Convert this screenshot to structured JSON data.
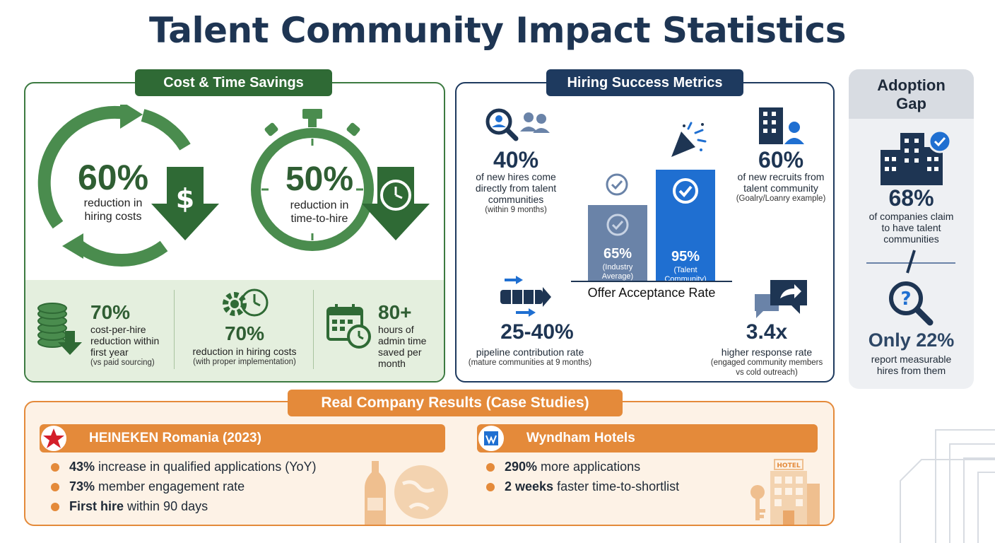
{
  "title": "Talent Community Impact Statistics",
  "colors": {
    "green": "#2f6a35",
    "navy": "#1e3a5f",
    "orange": "#e48a3a",
    "blue": "#1f6fd1",
    "gray_bar": "#6a83a8"
  },
  "cost_time": {
    "tab": "Cost & Time Savings",
    "hero": [
      {
        "value": "60%",
        "line1": "reduction in",
        "line2": "hiring costs",
        "icon": "dollar-down-arrow-icon"
      },
      {
        "value": "50%",
        "line1": "reduction in",
        "line2": "time-to-hire",
        "icon": "clock-down-arrow-icon"
      }
    ],
    "stats": [
      {
        "value": "70%",
        "line1": "cost-per-hire",
        "line2": "reduction within",
        "line3": "first year",
        "note": "(vs paid sourcing)",
        "icon": "coins-down-icon"
      },
      {
        "value": "70%",
        "line1": "reduction in hiring costs",
        "note": "(with proper implementation)",
        "icon": "gear-clock-icon"
      },
      {
        "value": "80+",
        "line1": "hours of",
        "line2": "admin time",
        "line3": "saved per",
        "line4": "month",
        "icon": "calendar-clock-icon"
      }
    ]
  },
  "hiring": {
    "tab": "Hiring Success Metrics",
    "stat_tl": {
      "value": "40%",
      "line1": "of new hires come",
      "line2": "directly from talent",
      "line3": "communities",
      "note": "(within 9 months)",
      "icon": "search-people-icon"
    },
    "stat_tr": {
      "value": "60%",
      "line1": "of new recruits from",
      "line2": "talent community",
      "note": "(Goalry/Loanry example)",
      "icon": "building-person-icon"
    },
    "stat_bl": {
      "value": "25-40%",
      "line1": "pipeline contribution rate",
      "note": "(mature communities at 9 months)",
      "icon": "pipeline-arrows-icon"
    },
    "stat_br": {
      "value": "3.4x",
      "line1": "higher response rate",
      "note1": "(engaged community members",
      "note2": "vs cold outreach)",
      "icon": "chat-reply-icon"
    }
  },
  "chart_data": {
    "type": "bar",
    "title": "Offer Acceptance Rate",
    "categories": [
      "Industry Average",
      "Talent Community"
    ],
    "values": [
      65,
      95
    ],
    "labels": [
      "65%",
      "95%"
    ],
    "sub1": [
      "(Industry",
      "(Talent"
    ],
    "sub2": [
      "Average)",
      "Community)"
    ],
    "colors": [
      "#6a83a8",
      "#1f6fd1"
    ],
    "ylim": [
      0,
      100
    ]
  },
  "adoption": {
    "title1": "Adoption",
    "title2": "Gap",
    "value1": "68%",
    "line1": "of companies claim",
    "line2": "to have talent",
    "line3": "communities",
    "value2": "Only 22%",
    "line4": "report measurable",
    "line5": "hires from them"
  },
  "cases": {
    "tab": "Real Company Results (Case Studies)",
    "heineken": {
      "name": "HEINEKEN Romania (2023)",
      "b1_bold": "43%",
      "b1_rest": " increase in qualified applications (YoY)",
      "b2_bold": "73%",
      "b2_rest": " member engagement rate",
      "b3_bold": "First hire",
      "b3_rest": " within 90 days"
    },
    "wyndham": {
      "name": "Wyndham Hotels",
      "b1_bold": "290%",
      "b1_rest": " more applications",
      "b2_bold": "2 weeks",
      "b2_rest": " faster time-to-shortlist",
      "hotel_sign": "HOTEL"
    }
  }
}
